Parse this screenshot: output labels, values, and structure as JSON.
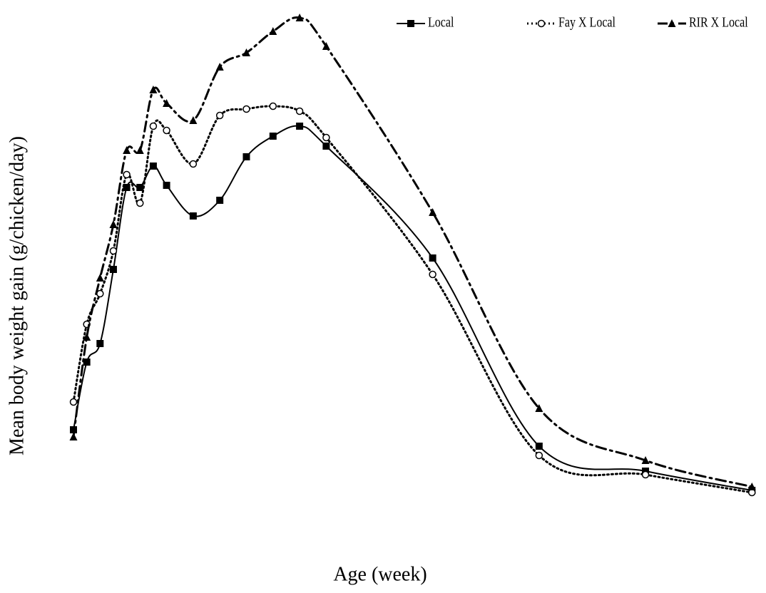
{
  "chart_data": {
    "type": "line",
    "x_label": "Age (week)",
    "y_label": "Mean body weight gain (g/chicken/day)",
    "x": [
      0,
      0.5,
      1,
      1.5,
      2,
      2.5,
      3,
      3.5,
      4.5,
      5.5,
      6.5,
      7.5,
      8.5,
      9.5,
      13.5,
      17.5,
      21.5,
      25.5
    ],
    "xlim": [
      0,
      25.6
    ],
    "ylim": [
      0,
      72
    ],
    "legend": "top",
    "series": [
      {
        "name": "Local",
        "color": "#000000",
        "marker": "square",
        "dash": "solid",
        "values": [
          11.7,
          21.2,
          23.8,
          34.2,
          45.7,
          45.7,
          48.7,
          46.0,
          41.7,
          43.9,
          50.0,
          52.9,
          54.3,
          51.5,
          35.8,
          9.4,
          5.9,
          3.2
        ]
      },
      {
        "name": "Fay X Local",
        "color": "#000000",
        "marker": "circle",
        "dash": "dotted",
        "values": [
          15.6,
          26.5,
          30.8,
          36.8,
          47.5,
          43.5,
          54.3,
          53.7,
          49.0,
          55.8,
          56.7,
          57.1,
          56.4,
          52.7,
          33.5,
          8.1,
          5.4,
          2.9
        ]
      },
      {
        "name": "RIR X Local",
        "color": "#000000",
        "marker": "triangle",
        "dash": "dashdot",
        "values": [
          10.7,
          24.7,
          33.0,
          40.5,
          50.9,
          50.9,
          59.4,
          57.5,
          55.1,
          62.6,
          64.6,
          67.6,
          69.5,
          65.5,
          42.2,
          14.7,
          7.4,
          3.7
        ]
      }
    ]
  }
}
